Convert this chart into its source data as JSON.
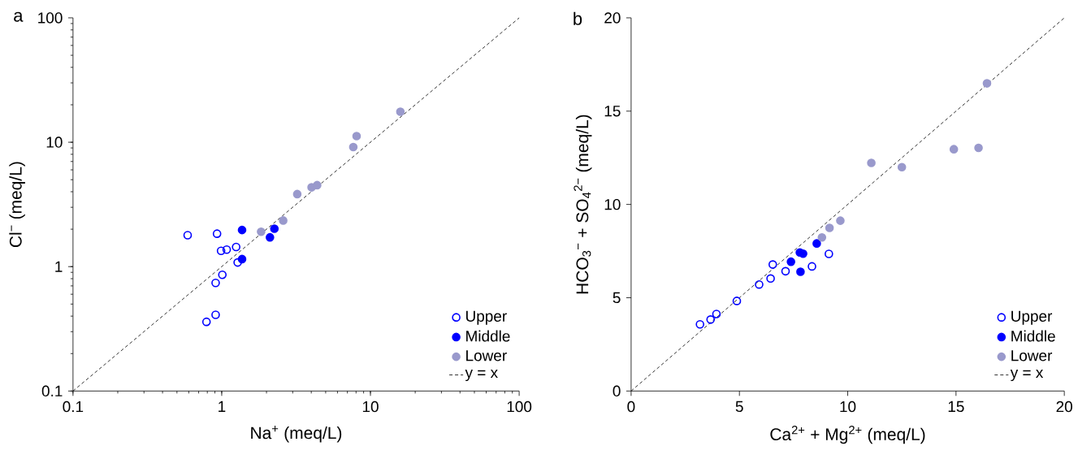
{
  "chart_data": [
    {
      "type": "scatter",
      "annotations": [
        "a"
      ],
      "xlabel": "Na$^{+}$ (meq/L)",
      "ylabel": "Cl$^{−}$ (meq/L)",
      "log": "xy",
      "xlim": [
        0.1,
        100
      ],
      "ylim": [
        0.1,
        100
      ],
      "xticks": [
        0.1,
        1,
        10,
        100
      ],
      "yticks": [
        0.1,
        1,
        10,
        100
      ],
      "legend": "bottom right",
      "marker": "circle",
      "series": [
        {
          "name": "Upper",
          "color": "#0000ff",
          "marker": "circle-open",
          "x": [
            0.59,
            0.93,
            0.99,
            1.08,
            1.25,
            1.28,
            1.01,
            0.91,
            0.91,
            0.79
          ],
          "values": [
            1.79,
            1.84,
            1.34,
            1.37,
            1.44,
            1.08,
            0.86,
            0.74,
            0.41,
            0.36
          ]
        },
        {
          "name": "Middle",
          "color": "#0000ff",
          "x": [
            1.37,
            1.37,
            2.26,
            2.11
          ],
          "values": [
            1.97,
            1.15,
            2.02,
            1.72
          ]
        },
        {
          "name": "Lower",
          "color": "#9999cc",
          "x": [
            1.84,
            2.59,
            3.22,
            4.02,
            4.38,
            7.67,
            8.07,
            15.9
          ],
          "values": [
            1.91,
            2.35,
            3.83,
            4.34,
            4.52,
            9.15,
            11.2,
            17.6
          ]
        },
        {
          "name": "y = x",
          "type": "line",
          "color": "#000000",
          "marker": "none",
          "line_style": "dashed",
          "x": [
            0.1,
            100
          ],
          "values": [
            0.1,
            100
          ]
        }
      ]
    },
    {
      "type": "scatter",
      "annotations": [
        "b"
      ],
      "xlabel": "Ca$^{2+}$ + Mg$^{2+}$ (meq/L)",
      "ylabel": "HCO$_{3}$$^{−}$ + SO$_{4}$$^{2−}$ (meq/L)",
      "xlim": [
        0,
        20
      ],
      "ylim": [
        0,
        20
      ],
      "xticks": [
        0,
        5,
        10,
        15,
        20
      ],
      "yticks": [
        0,
        5,
        10,
        15,
        20
      ],
      "legend": "bottom right",
      "marker": "circle",
      "series": [
        {
          "name": "Upper",
          "color": "#0000ff",
          "marker": "circle-open",
          "x": [
            3.18,
            3.67,
            3.94,
            4.88,
            5.91,
            6.44,
            6.54,
            7.13,
            8.35,
            9.13
          ],
          "values": [
            3.57,
            3.83,
            4.13,
            4.83,
            5.71,
            6.03,
            6.78,
            6.42,
            6.68,
            7.35
          ]
        },
        {
          "name": "Middle",
          "color": "#0000ff",
          "x": [
            7.38,
            7.79,
            7.94,
            7.82,
            8.57
          ],
          "values": [
            6.93,
            7.43,
            7.36,
            6.39,
            7.91
          ]
        },
        {
          "name": "Lower",
          "color": "#9999cc",
          "x": [
            8.81,
            9.16,
            9.66,
            11.09,
            12.5,
            14.9,
            16.04,
            16.43
          ],
          "values": [
            8.23,
            8.74,
            9.13,
            12.23,
            12.0,
            12.96,
            13.03,
            16.49
          ]
        },
        {
          "name": "y = x",
          "type": "line",
          "color": "#000000",
          "marker": "none",
          "line_style": "dashed",
          "x": [
            0,
            20
          ],
          "values": [
            0,
            20
          ]
        }
      ]
    }
  ]
}
